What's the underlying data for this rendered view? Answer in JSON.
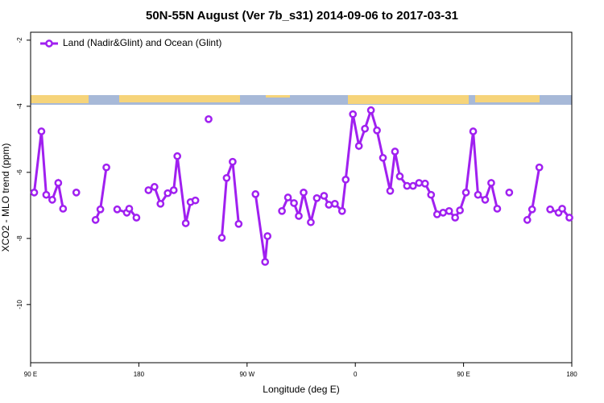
{
  "chart_data": {
    "type": "line",
    "title": "50N-55N August (Ver 7b_s31)   2014-09-06 to 2017-03-31",
    "xlabel": "Longitude (deg E)",
    "ylabel": "XCO2 - MLO trend (ppm)",
    "legend": "upper left",
    "xlim": [
      90,
      540
    ],
    "xticks": [
      {
        "value": 90,
        "label": "90 E"
      },
      {
        "value": 180,
        "label": "180"
      },
      {
        "value": 270,
        "label": "90 W"
      },
      {
        "value": 360,
        "label": "0"
      },
      {
        "value": 450,
        "label": "90 E"
      },
      {
        "value": 540,
        "label": "180"
      }
    ],
    "ylim": [
      -11.76,
      -1.76
    ],
    "yticks": [
      -2,
      -4,
      -6,
      -8,
      -10
    ],
    "x": [
      93,
      99,
      103,
      108,
      113,
      117,
      122,
      128,
      136,
      144,
      148,
      153,
      158,
      162,
      170,
      172,
      178,
      183,
      188,
      193,
      198,
      204,
      209,
      212,
      219,
      223,
      227,
      232,
      238,
      243,
      249,
      253,
      258,
      263,
      270,
      277,
      285,
      287,
      293,
      299,
      304,
      309,
      313,
      317,
      323,
      328,
      334,
      338,
      343,
      349,
      352,
      358,
      363,
      368,
      373,
      378,
      383,
      389,
      393,
      397,
      403,
      408,
      413,
      418,
      423,
      428,
      433,
      438,
      443,
      447,
      452,
      458,
      462,
      468,
      473,
      478,
      483,
      488,
      495,
      503,
      507,
      513,
      518,
      522,
      529,
      532,
      538
    ],
    "series": [
      {
        "name": "Land (Nadir&Glint) and Ocean (Glint)",
        "color": "#a020f0",
        "values": [
          -6.61,
          -4.76,
          -6.68,
          -6.83,
          -6.32,
          -7.1,
          null,
          -6.61,
          null,
          -7.44,
          -7.12,
          -5.85,
          null,
          -7.12,
          -7.22,
          -7.1,
          -7.37,
          null,
          -6.54,
          -6.44,
          -6.95,
          -6.63,
          -6.54,
          -5.51,
          -7.54,
          -6.9,
          -6.85,
          null,
          -4.39,
          null,
          -7.98,
          -6.17,
          -5.68,
          -7.56,
          null,
          -6.66,
          -8.71,
          -7.93,
          null,
          -7.17,
          -6.76,
          -6.93,
          -7.32,
          -6.61,
          -7.51,
          -6.78,
          -6.71,
          -6.98,
          -6.95,
          -7.17,
          -6.22,
          -4.24,
          -5.2,
          -4.68,
          -4.12,
          -4.73,
          -5.56,
          -6.56,
          -5.37,
          -6.12,
          -6.41,
          -6.41,
          -6.32,
          -6.34,
          -6.68,
          -7.27,
          -7.22,
          -7.17,
          -7.37,
          -7.15,
          -6.61,
          -4.76,
          -6.68,
          -6.83,
          -6.32,
          -7.1,
          null,
          -6.61,
          null,
          -7.44,
          -7.12,
          -5.85,
          null,
          -7.12,
          -7.22,
          -7.1,
          -7.37
        ]
      }
    ]
  }
}
